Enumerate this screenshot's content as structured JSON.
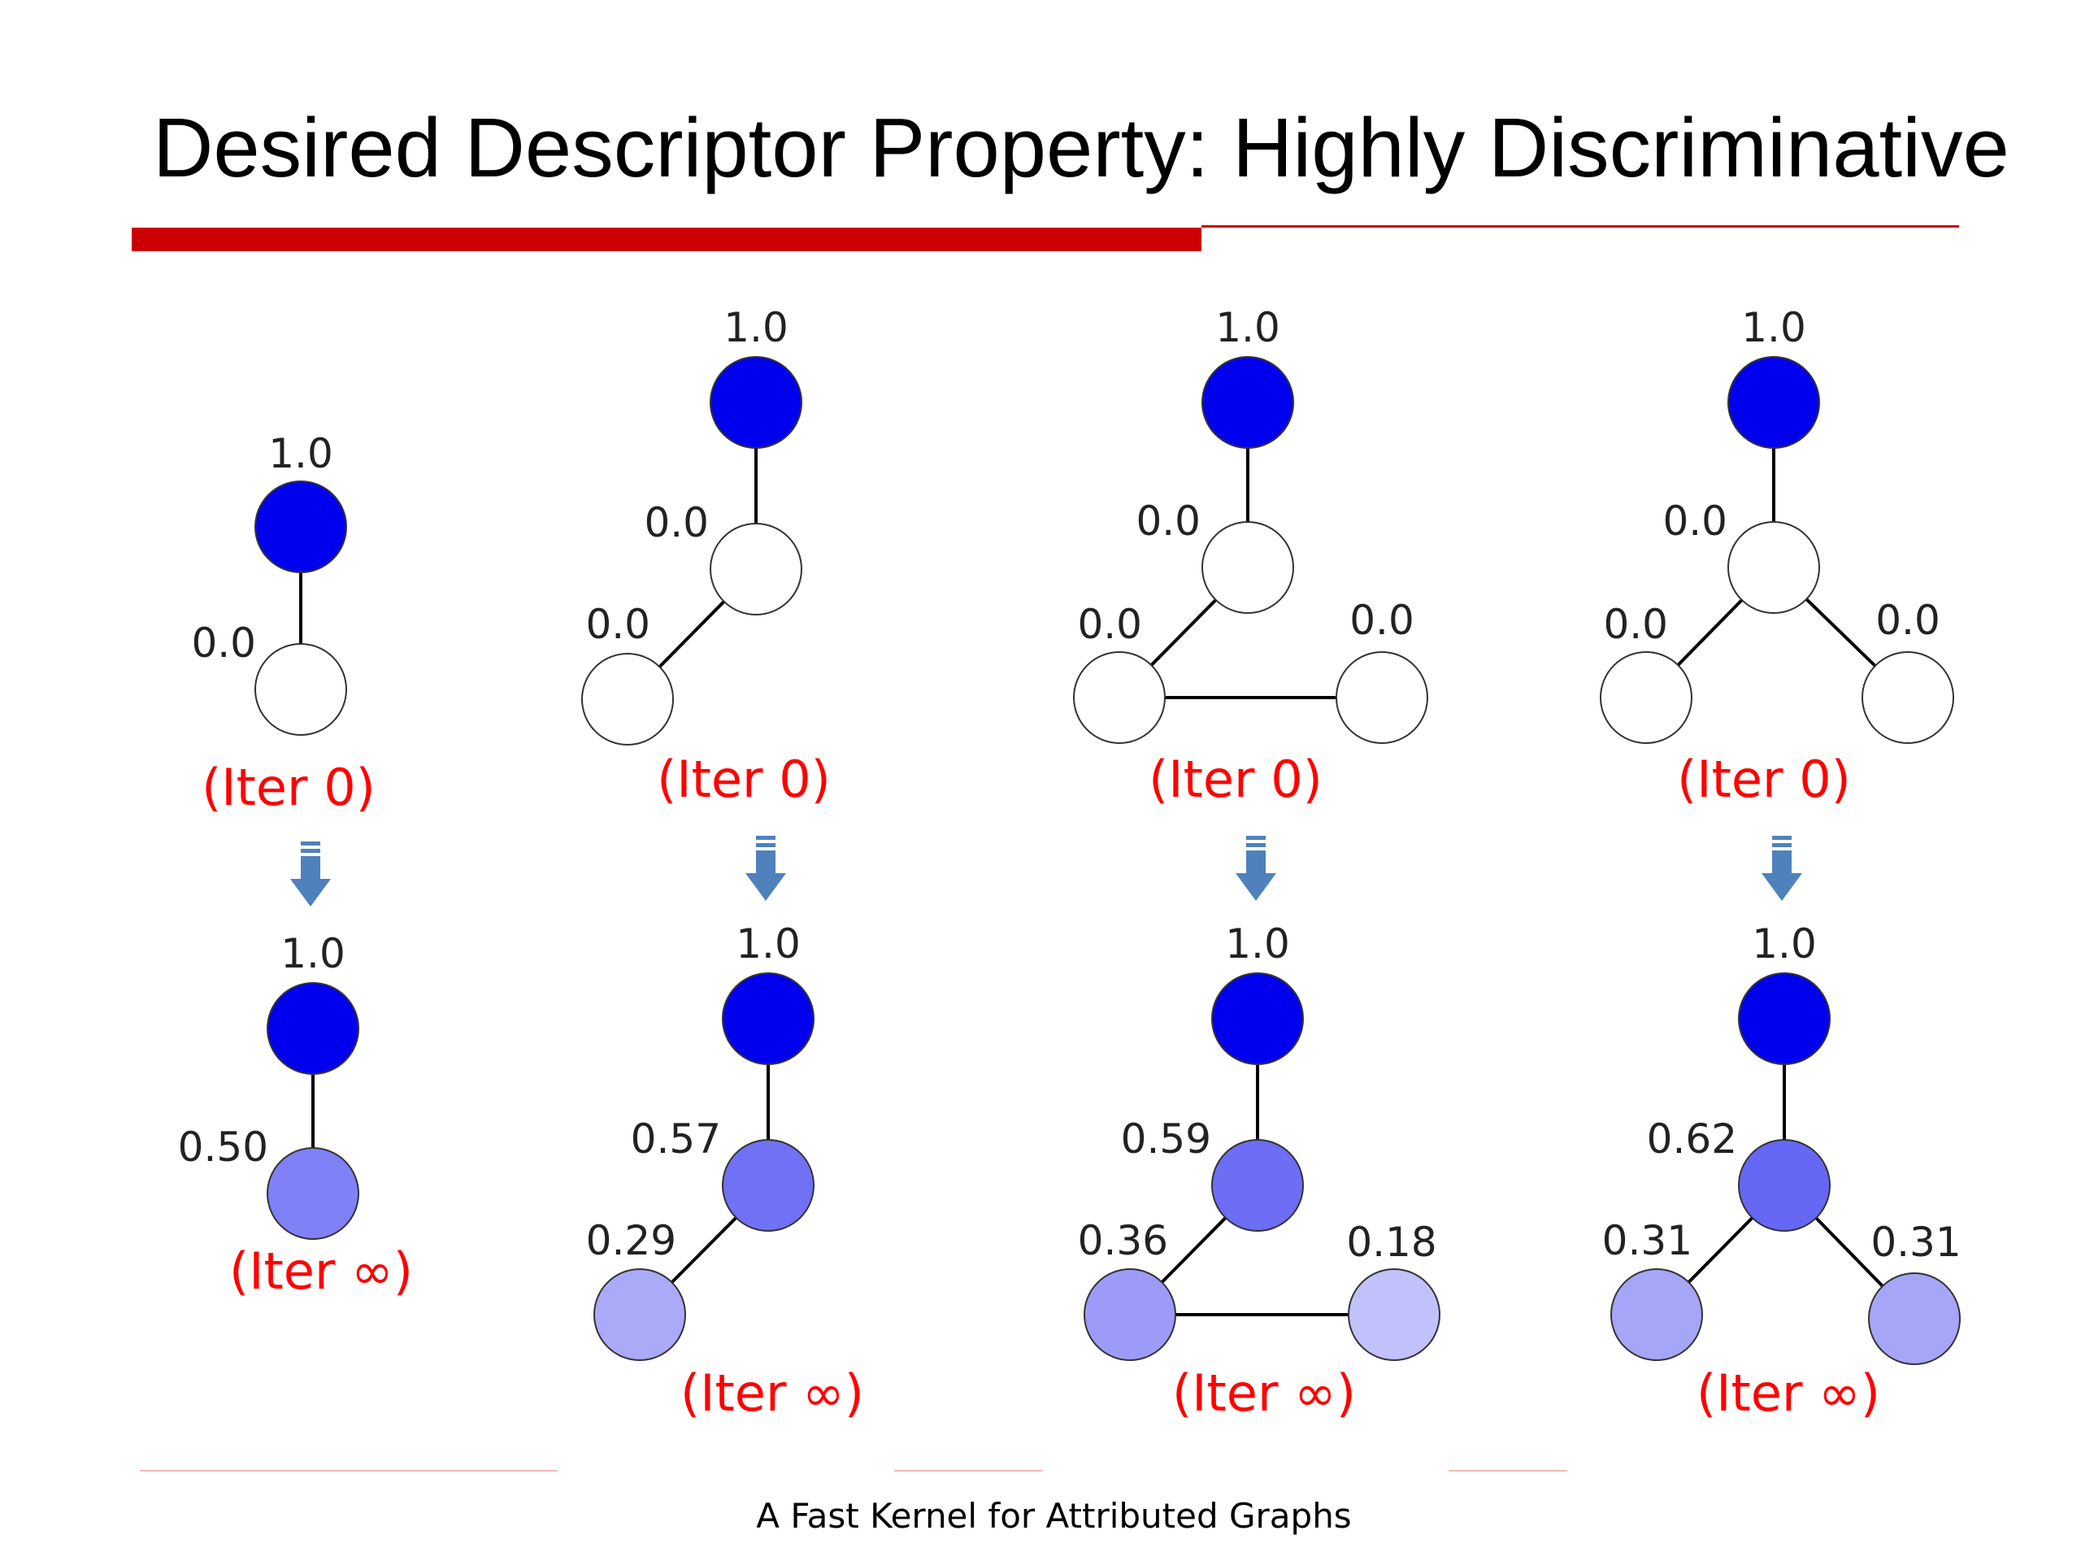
{
  "title": "Desired Descriptor Property: Highly Discriminative",
  "footer": "A Fast Kernel for Attributed Graphs",
  "colors": {
    "accent_red": "#cc0000",
    "iter_label": "#ff0000",
    "arrow": "#4f81bd",
    "node_stroke": "#333333",
    "node_base": "#0000ee"
  },
  "graphs": [
    {
      "iter0_label": "(Iter 0)",
      "iterinf_label": "(Iter ∞)",
      "iter0_values": [
        "1.0",
        "0.0"
      ],
      "iterinf_values": [
        "1.0",
        "0.50"
      ]
    },
    {
      "iter0_label": "(Iter 0)",
      "iterinf_label": "(Iter ∞)",
      "iter0_values": [
        "1.0",
        "0.0",
        "0.0"
      ],
      "iterinf_values": [
        "1.0",
        "0.57",
        "0.29"
      ]
    },
    {
      "iter0_label": "(Iter 0)",
      "iterinf_label": "(Iter ∞)",
      "iter0_values": [
        "1.0",
        "0.0",
        "0.0",
        "0.0"
      ],
      "iterinf_values": [
        "1.0",
        "0.59",
        "0.36",
        "0.18"
      ]
    },
    {
      "iter0_label": "(Iter 0)",
      "iterinf_label": "(Iter ∞)",
      "iter0_values": [
        "1.0",
        "0.0",
        "0.0",
        "0.0"
      ],
      "iterinf_values": [
        "1.0",
        "0.62",
        "0.31",
        "0.31"
      ]
    }
  ]
}
